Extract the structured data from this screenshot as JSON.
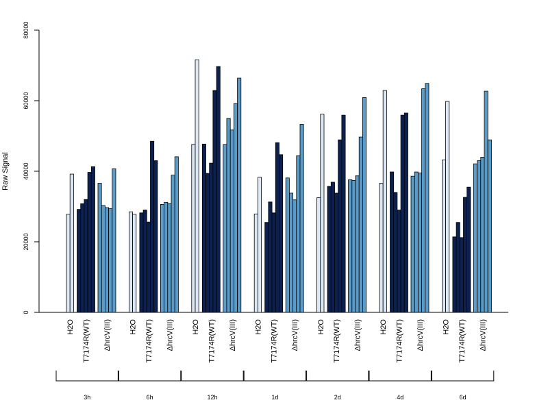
{
  "chart_data": {
    "type": "bar",
    "ylabel": "Raw Signal",
    "ylim": [
      0,
      80000
    ],
    "yticks": [
      0,
      20000,
      40000,
      60000,
      80000
    ],
    "colors": {
      "H2O": "#dce8f4",
      "T7174R(WT)": "#0d2150",
      "hrcV(III)": "#5b9bc8"
    },
    "groups": [
      {
        "name": "3h",
        "H2O": [
          27800,
          39200
        ],
        "T7174R(WT)": [
          29200,
          30800,
          32000,
          39700,
          41300
        ],
        "hrcV(III)": [
          36600,
          30300,
          29700,
          29400,
          40700
        ]
      },
      {
        "name": "6h",
        "H2O": [
          28500,
          27800
        ],
        "T7174R(WT)": [
          28200,
          29000,
          25600,
          48500,
          43000
        ],
        "hrcV(III)": [
          30600,
          31200,
          30800,
          38900,
          44100
        ]
      },
      {
        "name": "12h",
        "H2O": [
          47600,
          71600
        ],
        "T7174R(WT)": [
          47700,
          39400,
          42300,
          62900,
          69700
        ],
        "hrcV(III)": [
          47600,
          55000,
          51700,
          59200,
          66400
        ]
      },
      {
        "name": "1d",
        "H2O": [
          27900,
          38300
        ],
        "T7174R(WT)": [
          25500,
          31300,
          28200,
          48100,
          44700
        ],
        "hrcV(III)": [
          38100,
          33800,
          31900,
          44400,
          53300
        ]
      },
      {
        "name": "2d",
        "H2O": [
          32500,
          56200
        ],
        "T7174R(WT)": [
          35700,
          36900,
          33800,
          48900,
          55900
        ],
        "hrcV(III)": [
          37600,
          37400,
          38700,
          49700,
          60900
        ]
      },
      {
        "name": "4d",
        "H2O": [
          36600,
          62900
        ],
        "T7174R(WT)": [
          39800,
          34000,
          29000,
          55900,
          56500
        ],
        "hrcV(III)": [
          38600,
          39800,
          39500,
          63400,
          64900
        ]
      },
      {
        "name": "6d",
        "H2O": [
          43200,
          59800
        ],
        "T7174R(WT)": [
          21400,
          25500,
          21200,
          32600,
          35500
        ],
        "hrcV(III)": [
          42100,
          43000,
          44000,
          62700,
          48900
        ]
      }
    ],
    "condition_labels": [
      "H2O",
      "T7174R(WT)",
      "ΔhrcV(III)"
    ],
    "legend": "none"
  }
}
